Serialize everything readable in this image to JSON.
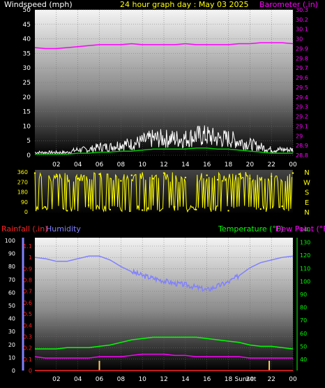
{
  "header": {
    "left_title": "Windspeed (mph)",
    "center_title": "24 hour graph day : May 03 2025",
    "right_title": "Barometer (.in)"
  },
  "colors": {
    "wind": "#ffffff",
    "wind_avg": "#00cc00",
    "barometer": "#ff00ff",
    "direction": "#ffff00",
    "rain": "#ff2222",
    "humidity": "#8080ff",
    "temperature": "#00ff00",
    "dewpoint": "#ff00ff",
    "sun_marker": "#ffcc66",
    "axis_text": "#ffffff",
    "title_yellow": "#ffff00"
  },
  "x_tick_labels": [
    "02",
    "04",
    "06",
    "08",
    "10",
    "12",
    "14",
    "16",
    "18",
    "20",
    "22",
    "00"
  ],
  "panels": {
    "wind": {
      "left_ticks": [
        "0",
        "5",
        "10",
        "15",
        "20",
        "25",
        "30",
        "35",
        "40",
        "45",
        "50"
      ],
      "right_ticks": [
        "28.8",
        "28.9",
        "29",
        "29.1",
        "29.2",
        "29.3",
        "29.4",
        "29.5",
        "29.6",
        "29.7",
        "29.8",
        "29.9",
        "30",
        "30.1",
        "30.2",
        "30.3"
      ]
    },
    "direction": {
      "left_ticks": [
        "0",
        "90",
        "180",
        "270",
        "360"
      ],
      "compass": [
        "N",
        "W",
        "S",
        "E",
        "N"
      ]
    },
    "lower": {
      "rain_title": "Rainfall (.in)",
      "humidity_title": "Humidity",
      "temp_title": "Temperature (°F)",
      "dew_title": "Dew Point (°F)",
      "humidity_ticks": [
        "0",
        "10",
        "20",
        "30",
        "40",
        "50",
        "60",
        "70",
        "80",
        "90",
        "100"
      ],
      "rain_ticks": [
        "0",
        "0.1",
        "0.2",
        "0.3",
        "0.4",
        "0.5",
        "0.6",
        "0.7",
        "0.8",
        "0.9",
        "1",
        "1.1"
      ],
      "temp_ticks": [
        "40",
        "50",
        "60",
        "70",
        "80",
        "90",
        "100",
        "110",
        "120",
        "130",
        "140"
      ],
      "sun_labels": [
        "Sunset",
        "Sunset"
      ]
    }
  },
  "chart_data": [
    {
      "type": "line",
      "title": "24 hour graph day : May 03 2025",
      "x": [
        0,
        1,
        2,
        3,
        4,
        5,
        6,
        7,
        8,
        9,
        10,
        11,
        12,
        13,
        14,
        15,
        16,
        17,
        18,
        19,
        20,
        21,
        22,
        23,
        24
      ],
      "series": [
        {
          "name": "Windspeed (mph)",
          "axis": "left",
          "values": [
            1,
            1,
            1,
            1,
            2,
            2,
            3,
            3,
            4,
            4,
            5,
            6,
            6,
            6,
            6,
            7,
            7,
            6,
            6,
            5,
            4,
            3,
            2,
            2,
            2
          ]
        },
        {
          "name": "Barometer (.in)",
          "axis": "right",
          "values": [
            29.91,
            29.9,
            29.9,
            29.91,
            29.92,
            29.93,
            29.94,
            29.94,
            29.94,
            29.95,
            29.94,
            29.94,
            29.94,
            29.94,
            29.95,
            29.94,
            29.94,
            29.94,
            29.94,
            29.95,
            29.95,
            29.96,
            29.96,
            29.96,
            29.95
          ]
        }
      ],
      "xlabel": "",
      "ylim_left": [
        0,
        50
      ],
      "ylim_right": [
        28.8,
        30.3
      ]
    },
    {
      "type": "scatter",
      "title": "",
      "x": [
        0,
        1,
        2,
        3,
        4,
        5,
        6,
        7,
        8,
        9,
        10,
        11,
        12,
        13,
        14,
        15,
        16,
        17,
        18,
        19,
        20,
        21,
        22,
        23,
        24
      ],
      "series": [
        {
          "values": [
            350,
            40,
            320,
            10,
            300,
            60,
            340,
            20,
            280,
            330,
            15,
            300,
            350,
            45,
            310,
            20,
            330,
            290,
            10,
            340,
            300,
            25,
            320,
            50,
            350
          ]
        }
      ],
      "ylim": [
        0,
        360
      ]
    },
    {
      "type": "line",
      "title": "",
      "x": [
        0,
        1,
        2,
        3,
        4,
        5,
        6,
        7,
        8,
        9,
        10,
        11,
        12,
        13,
        14,
        15,
        16,
        17,
        18,
        19,
        20,
        21,
        22,
        23,
        24
      ],
      "series": [
        {
          "name": "Humidity",
          "axis": "left",
          "values": [
            87,
            86,
            84,
            84,
            86,
            88,
            88,
            85,
            80,
            76,
            73,
            71,
            69,
            67,
            66,
            64,
            62,
            65,
            68,
            73,
            79,
            83,
            85,
            87,
            88
          ]
        },
        {
          "name": "Temperature (°F)",
          "axis": "right",
          "values": [
            48,
            48,
            48,
            49,
            49,
            49,
            50,
            51,
            53,
            55,
            56,
            57,
            57,
            57,
            57,
            57,
            56,
            55,
            54,
            53,
            51,
            50,
            50,
            49,
            48
          ]
        },
        {
          "name": "Dew Point (°F)",
          "axis": "right",
          "values": [
            42,
            41,
            41,
            41,
            41,
            41,
            42,
            42,
            42,
            43,
            44,
            44,
            44,
            43,
            43,
            42,
            42,
            42,
            42,
            42,
            41,
            41,
            41,
            41,
            41
          ]
        },
        {
          "name": "Rainfall (.in)",
          "axis": "rain",
          "values": [
            0,
            0,
            0,
            0,
            0,
            0,
            0,
            0,
            0,
            0,
            0,
            0,
            0,
            0,
            0,
            0,
            0,
            0,
            0,
            0,
            0,
            0,
            0,
            0,
            0
          ]
        }
      ],
      "ylim_humidity": [
        0,
        100
      ],
      "ylim_rain": [
        0,
        1.1
      ],
      "ylim_temp": [
        40,
        140
      ]
    }
  ]
}
